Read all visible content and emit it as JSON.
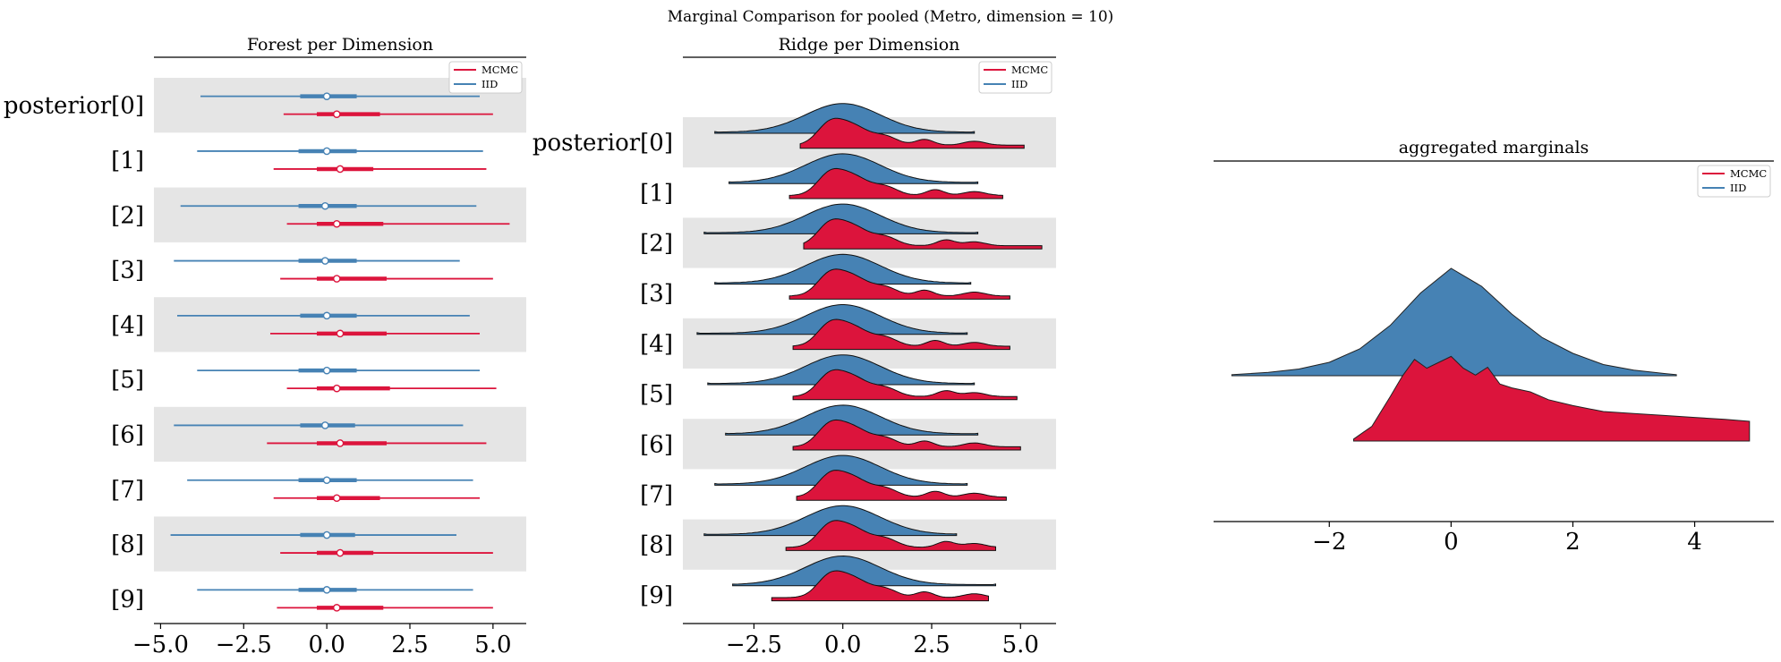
{
  "figure": {
    "suptitle": "Marginal Comparison for pooled (Metro, dimension = 10)"
  },
  "colors": {
    "mcmc": "#dc143c",
    "iid": "#4682b4",
    "band": "#e5e5e5",
    "axis": "#000000"
  },
  "chart_data": [
    {
      "type": "forest",
      "title": "Forest per Dimension",
      "xlim": [
        -5.2,
        6.0
      ],
      "xticks": [
        -5.0,
        -2.5,
        0.0,
        2.5,
        5.0
      ],
      "xticklabels": [
        "−5.0",
        "−2.5",
        "0.0",
        "2.5",
        "5.0"
      ],
      "row_labels": [
        "posterior[0]",
        "[1]",
        "[2]",
        "[3]",
        "[4]",
        "[5]",
        "[6]",
        "[7]",
        "[8]",
        "[9]"
      ],
      "legend": {
        "position": "top-right",
        "entries": [
          "MCMC",
          "IID"
        ]
      },
      "series": [
        {
          "name": "IID",
          "color": "#4682b4",
          "rows": [
            {
              "low": -3.8,
              "q1": -0.8,
              "median": 0.0,
              "q3": 0.9,
              "high": 4.6
            },
            {
              "low": -3.9,
              "q1": -0.85,
              "median": 0.0,
              "q3": 0.9,
              "high": 4.7
            },
            {
              "low": -4.4,
              "q1": -0.85,
              "median": -0.05,
              "q3": 0.9,
              "high": 4.5
            },
            {
              "low": -4.6,
              "q1": -0.85,
              "median": -0.05,
              "q3": 0.9,
              "high": 4.0
            },
            {
              "low": -4.5,
              "q1": -0.8,
              "median": 0.0,
              "q3": 0.9,
              "high": 4.3
            },
            {
              "low": -3.9,
              "q1": -0.85,
              "median": 0.0,
              "q3": 0.9,
              "high": 4.6
            },
            {
              "low": -4.6,
              "q1": -0.8,
              "median": -0.05,
              "q3": 0.85,
              "high": 4.1
            },
            {
              "low": -4.2,
              "q1": -0.85,
              "median": 0.0,
              "q3": 0.9,
              "high": 4.4
            },
            {
              "low": -4.7,
              "q1": -0.8,
              "median": 0.0,
              "q3": 0.85,
              "high": 3.9
            },
            {
              "low": -3.9,
              "q1": -0.85,
              "median": 0.0,
              "q3": 0.9,
              "high": 4.4
            }
          ]
        },
        {
          "name": "MCMC",
          "color": "#dc143c",
          "rows": [
            {
              "low": -1.3,
              "q1": -0.3,
              "median": 0.3,
              "q3": 1.6,
              "high": 5.0
            },
            {
              "low": -1.6,
              "q1": -0.3,
              "median": 0.4,
              "q3": 1.4,
              "high": 4.8
            },
            {
              "low": -1.2,
              "q1": -0.3,
              "median": 0.3,
              "q3": 1.7,
              "high": 5.5
            },
            {
              "low": -1.4,
              "q1": -0.3,
              "median": 0.3,
              "q3": 1.8,
              "high": 5.0
            },
            {
              "low": -1.7,
              "q1": -0.3,
              "median": 0.4,
              "q3": 1.8,
              "high": 4.6
            },
            {
              "low": -1.2,
              "q1": -0.3,
              "median": 0.3,
              "q3": 1.9,
              "high": 5.1
            },
            {
              "low": -1.8,
              "q1": -0.3,
              "median": 0.4,
              "q3": 1.8,
              "high": 4.8
            },
            {
              "low": -1.6,
              "q1": -0.3,
              "median": 0.3,
              "q3": 1.6,
              "high": 4.6
            },
            {
              "low": -1.4,
              "q1": -0.3,
              "median": 0.4,
              "q3": 1.4,
              "high": 5.0
            },
            {
              "low": -1.5,
              "q1": -0.3,
              "median": 0.3,
              "q3": 1.7,
              "high": 5.0
            }
          ]
        }
      ]
    },
    {
      "type": "ridge",
      "title": "Ridge per Dimension",
      "xlim": [
        -4.5,
        6.0
      ],
      "xticks": [
        -2.5,
        0.0,
        2.5,
        5.0
      ],
      "xticklabels": [
        "−2.5",
        "0.0",
        "2.5",
        "5.0"
      ],
      "row_labels": [
        "posterior[0]",
        "[1]",
        "[2]",
        "[3]",
        "[4]",
        "[5]",
        "[6]",
        "[7]",
        "[8]",
        "[9]"
      ],
      "legend": {
        "position": "top-right",
        "entries": [
          "MCMC",
          "IID"
        ]
      },
      "series": [
        {
          "name": "IID",
          "color": "#4682b4",
          "ranges": [
            [
              -3.6,
              3.7
            ],
            [
              -3.2,
              3.8
            ],
            [
              -3.9,
              3.8
            ],
            [
              -3.6,
              3.6
            ],
            [
              -4.1,
              3.5
            ],
            [
              -3.8,
              3.7
            ],
            [
              -3.3,
              3.8
            ],
            [
              -3.6,
              3.5
            ],
            [
              -3.9,
              3.2
            ],
            [
              -3.1,
              4.3
            ]
          ]
        },
        {
          "name": "MCMC",
          "color": "#dc143c",
          "ranges": [
            [
              -1.2,
              5.1
            ],
            [
              -1.5,
              4.5
            ],
            [
              -1.1,
              5.6
            ],
            [
              -1.5,
              4.7
            ],
            [
              -1.4,
              4.7
            ],
            [
              -1.4,
              4.9
            ],
            [
              -1.4,
              5.0
            ],
            [
              -1.3,
              4.6
            ],
            [
              -1.6,
              4.3
            ],
            [
              -2.0,
              4.1
            ]
          ]
        }
      ]
    },
    {
      "type": "area",
      "title": "aggregated marginals",
      "xlim": [
        -3.9,
        5.3
      ],
      "xticks": [
        -2,
        0,
        2,
        4
      ],
      "xticklabels": [
        "−2",
        "0",
        "2",
        "4"
      ],
      "legend": {
        "position": "top-right",
        "entries": [
          "MCMC",
          "IID"
        ]
      },
      "series": [
        {
          "name": "IID",
          "color": "#4682b4",
          "x": [
            -3.6,
            -3.0,
            -2.5,
            -2.0,
            -1.5,
            -1.0,
            -0.5,
            0.0,
            0.5,
            1.0,
            1.5,
            2.0,
            2.5,
            3.0,
            3.5,
            3.7
          ],
          "density": [
            0.01,
            0.03,
            0.06,
            0.12,
            0.24,
            0.45,
            0.74,
            0.96,
            0.8,
            0.55,
            0.34,
            0.2,
            0.1,
            0.05,
            0.02,
            0.01
          ]
        },
        {
          "name": "MCMC",
          "color": "#dc143c",
          "x": [
            -1.6,
            -1.3,
            -1.0,
            -0.8,
            -0.6,
            -0.4,
            -0.2,
            0.0,
            0.2,
            0.4,
            0.6,
            0.8,
            1.0,
            1.3,
            1.6,
            2.0,
            2.5,
            3.0,
            3.5,
            4.0,
            4.5,
            4.9
          ],
          "density": [
            0.02,
            0.15,
            0.45,
            0.66,
            0.83,
            0.74,
            0.8,
            0.86,
            0.74,
            0.67,
            0.75,
            0.58,
            0.54,
            0.5,
            0.42,
            0.36,
            0.3,
            0.28,
            0.26,
            0.24,
            0.22,
            0.2
          ]
        }
      ]
    }
  ]
}
